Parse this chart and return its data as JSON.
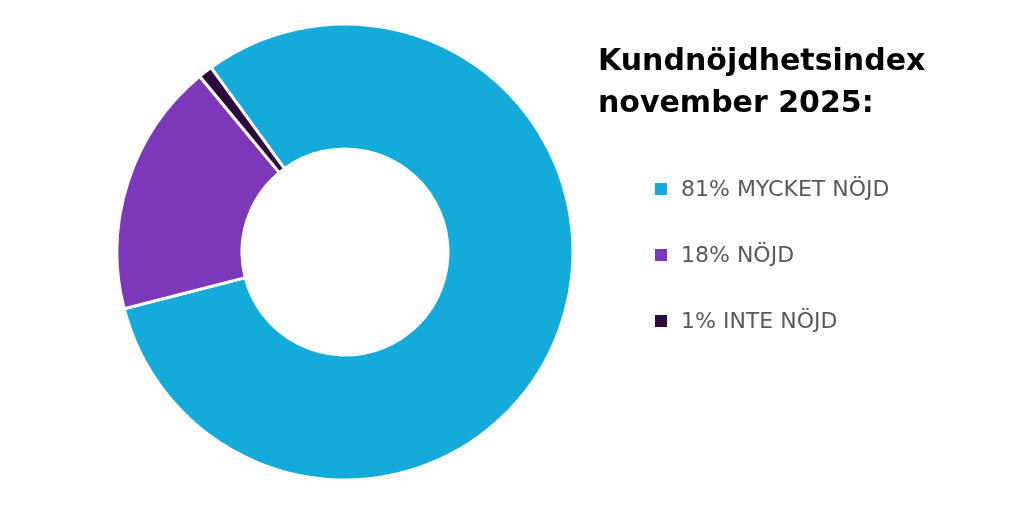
{
  "chart_data": {
    "type": "donut",
    "title": "Kundnöjdhetsindex november 2025:",
    "categories": [
      "81% MYCKET NÖJD",
      "18% NÖJD",
      "1% INTE NÖJD"
    ],
    "values": [
      81,
      18,
      1
    ],
    "colors": [
      "#14abdb",
      "#7d37b9",
      "#2b0a3d"
    ],
    "legend": "right"
  }
}
